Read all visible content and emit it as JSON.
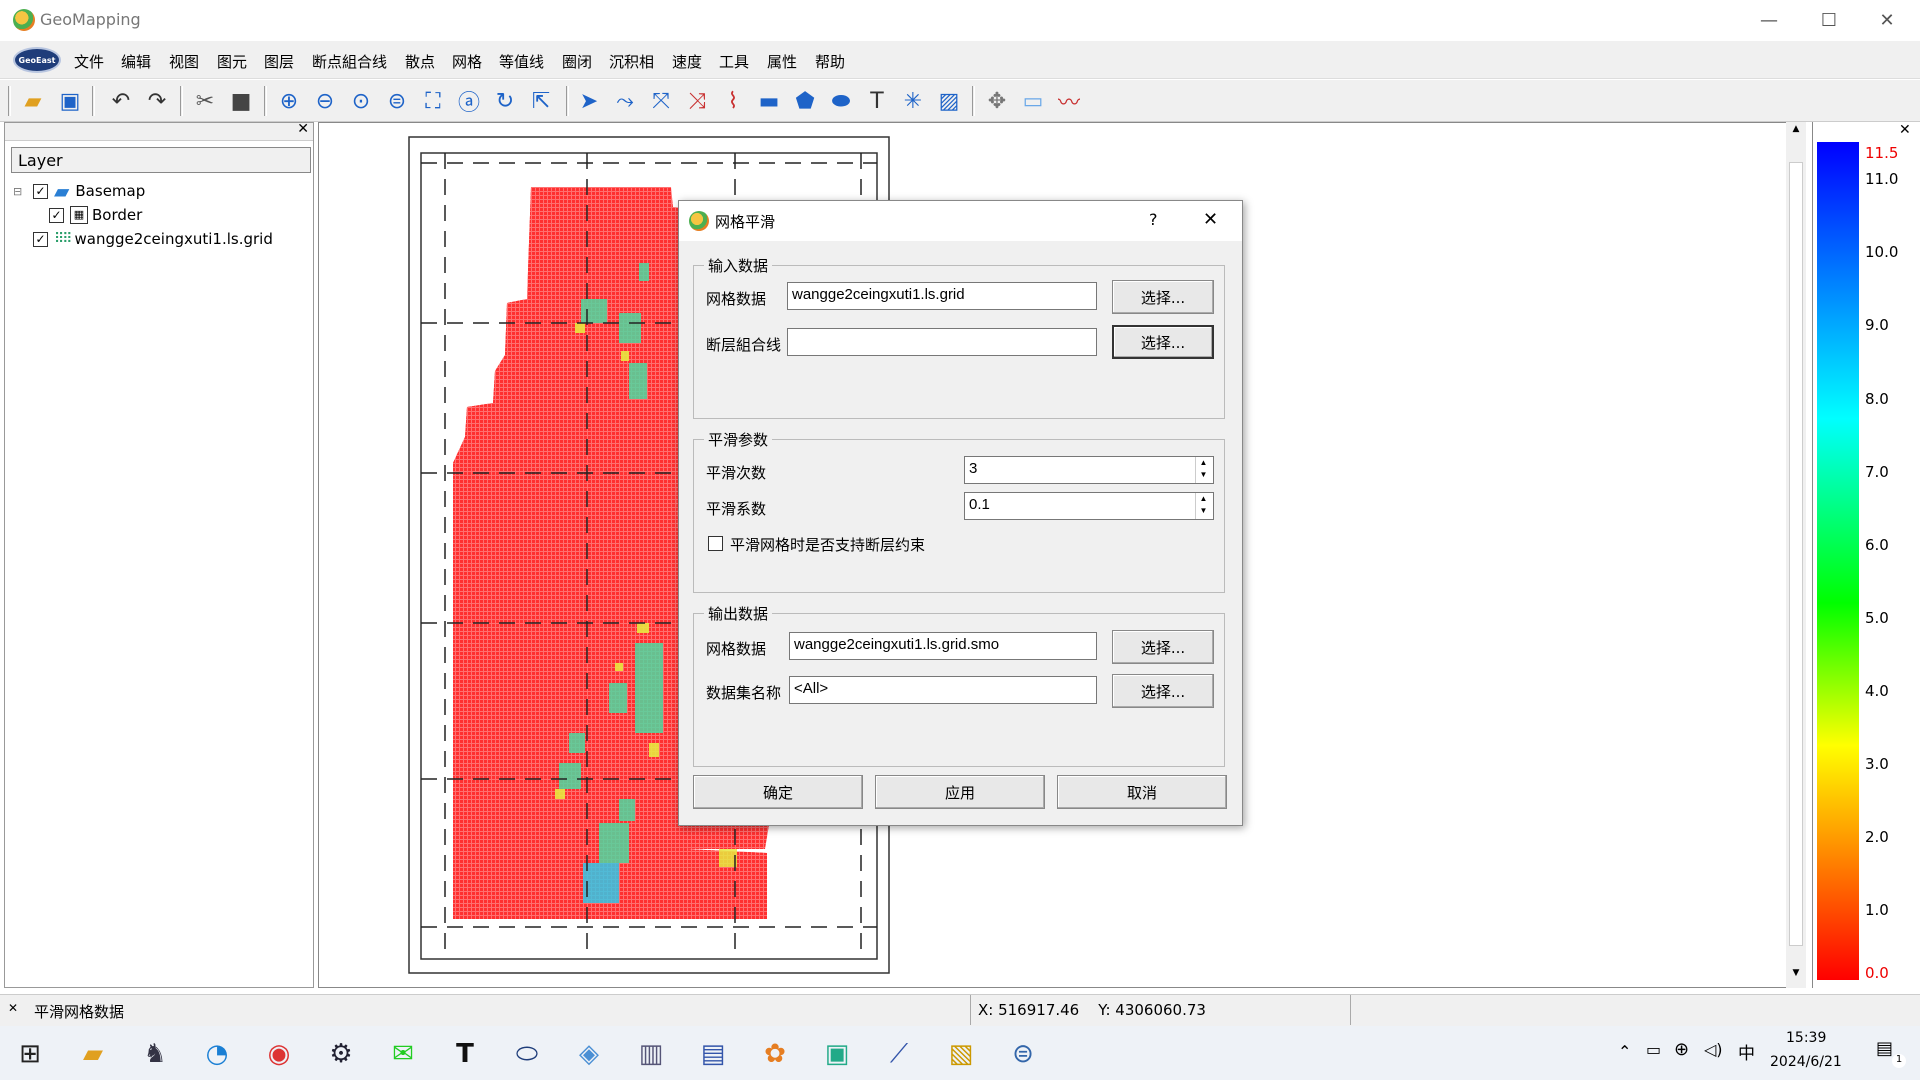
{
  "window": {
    "title": "GeoMapping",
    "minimize": "—",
    "maximize": "☐",
    "close": "✕"
  },
  "menu": [
    "文件",
    "编辑",
    "视图",
    "图元",
    "图层",
    "断点組合线",
    "散点",
    "网格",
    "等值线",
    "圈闭",
    "沉积相",
    "速度",
    "工具",
    "属性",
    "帮助"
  ],
  "logo_text": "GeoEast",
  "layers": {
    "header": "Layer",
    "items": [
      {
        "name": "Basemap",
        "checked": true
      },
      {
        "name": "Border",
        "checked": true
      },
      {
        "name": "wangge2ceingxuti1.ls.grid",
        "checked": true
      }
    ]
  },
  "colorbar": {
    "labels": [
      "11.5",
      "11.0",
      "10.0",
      "9.0",
      "8.0",
      "7.0",
      "6.0",
      "5.0",
      "4.0",
      "3.0",
      "2.0",
      "1.0",
      "0.0"
    ]
  },
  "dialog": {
    "title": "网格平滑",
    "help": "?",
    "close": "✕",
    "input_group": "输入数据",
    "grid_label": "网格数据",
    "grid_value": "wangge2ceingxuti1.ls.grid",
    "fault_label": "断层組合线",
    "fault_value": "",
    "select": "选择...",
    "smooth_group": "平滑参数",
    "times_label": "平滑次数",
    "times_value": "3",
    "coef_label": "平滑系数",
    "coef_value": "0.1",
    "fault_constraint": "平滑网格时是否支持断层约束",
    "fault_constraint_checked": false,
    "output_group": "输出数据",
    "out_grid_label": "网格数据",
    "out_grid_value": "wangge2ceingxuti1.ls.grid.smo",
    "dataset_label": "数据集名称",
    "dataset_value": "<All>",
    "ok": "确定",
    "apply": "应用",
    "cancel": "取消"
  },
  "status": {
    "message": "平滑网格数据",
    "coords": "X: 516917.46    Y: 4306060.73"
  },
  "tray": {
    "ime": "中",
    "time": "15:39",
    "date": "2024/6/21",
    "notif": "1"
  }
}
